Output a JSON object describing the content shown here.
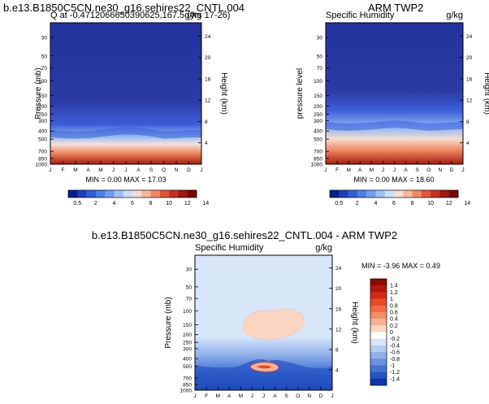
{
  "titles": {
    "top_left": "b.e13.B1850C5CN.ne30_g16.sehires22_CNTL.004",
    "top_right": "ARM TWP2",
    "bottom": "b.e13.B1850C5CN.ne30_g16.sehires22_CNTL.004 - ARM TWP2"
  },
  "chart_data": [
    {
      "type": "heatmap",
      "subtitle_left": "Q at -0.4712066650390625,167.5  (yrs 17-26)",
      "subtitle_right": "g/kg",
      "ylabel": "Pressure (mb)",
      "ylabel_right": "Height (km)",
      "months": [
        "J",
        "F",
        "M",
        "A",
        "M",
        "J",
        "J",
        "A",
        "S",
        "O",
        "N",
        "D",
        "J"
      ],
      "pressure_ticks": [
        "30",
        "50",
        "70",
        "100",
        "150",
        "200",
        "250",
        "300",
        "400",
        "500",
        "700",
        "850",
        "1000"
      ],
      "height_ticks": [
        "24",
        "20",
        "16",
        "12",
        "8",
        "4"
      ],
      "stats": "MIN =  0.00 MAX = 17.03",
      "min": 0.0,
      "max": 17.03,
      "colorbar_labels": [
        "0.5",
        "2",
        "4",
        "6",
        "8",
        "10",
        "12",
        "14"
      ],
      "colorbar_colors": [
        "#0a1f8f",
        "#1b3fbf",
        "#2f5ed6",
        "#4a7ee8",
        "#6f9ef2",
        "#9cc0f7",
        "#c8dcfb",
        "#f3dcd0",
        "#f6b89a",
        "#ef8a63",
        "#e2553b",
        "#c7301f",
        "#a01610",
        "#7a0705"
      ],
      "moisture_top_pressure_by_month": [
        390,
        400,
        405,
        400,
        385,
        370,
        360,
        365,
        380,
        405,
        400,
        390,
        390
      ]
    },
    {
      "type": "heatmap",
      "subtitle_left": "Specific Humidity",
      "subtitle_right": "g/kg",
      "ylabel": "pressure level",
      "ylabel_right": "Height (km)",
      "months": [
        "J",
        "F",
        "M",
        "A",
        "M",
        "J",
        "J",
        "A",
        "S",
        "O",
        "N",
        "D",
        "J"
      ],
      "pressure_ticks": [
        "30",
        "50",
        "70",
        "100",
        "150",
        "200",
        "250",
        "300",
        "400",
        "500",
        "700",
        "850",
        "1000"
      ],
      "height_ticks": [
        "24",
        "20",
        "16",
        "12",
        "8",
        "4"
      ],
      "stats": "MIN =  0.00 MAX = 18.60",
      "min": 0.0,
      "max": 18.6,
      "colorbar_labels": [
        "0.5",
        "2",
        "4",
        "6",
        "8",
        "10",
        "12",
        "14"
      ],
      "colorbar_colors": [
        "#0a1f8f",
        "#1b3fbf",
        "#2f5ed6",
        "#4a7ee8",
        "#6f9ef2",
        "#9cc0f7",
        "#c8dcfb",
        "#f3dcd0",
        "#f6b89a",
        "#ef8a63",
        "#e2553b",
        "#c7301f",
        "#a01610",
        "#7a0705"
      ],
      "moisture_top_pressure_by_month": [
        310,
        320,
        325,
        320,
        315,
        305,
        300,
        305,
        315,
        325,
        320,
        315,
        310
      ]
    },
    {
      "type": "heatmap",
      "subtitle_left": "Specific Humidity",
      "subtitle_right": "g/kg",
      "ylabel": "Pressure (mb)",
      "ylabel_right": "Height (km)",
      "months": [
        "J",
        "F",
        "M",
        "A",
        "M",
        "J",
        "J",
        "A",
        "S",
        "O",
        "N",
        "D",
        "J"
      ],
      "pressure_ticks": [
        "30",
        "50",
        "70",
        "100",
        "150",
        "200",
        "250",
        "300",
        "400",
        "500",
        "700",
        "850",
        "1000"
      ],
      "height_ticks": [
        "24",
        "20",
        "16",
        "12",
        "8",
        "4"
      ],
      "stats": "MIN = -3.96 MAX =  0.49",
      "min": -3.96,
      "max": 0.49,
      "colorbar_labels": [
        "1.4",
        "1.2",
        "1",
        "0.8",
        "0.6",
        "0.4",
        "0.2",
        "0",
        "-0.2",
        "-0.4",
        "-0.6",
        "-0.8",
        "-1",
        "-1.2",
        "-1.4"
      ],
      "colorbar_colors": [
        "#8c0a05",
        "#b3180e",
        "#d42a17",
        "#e84a2c",
        "#f06b47",
        "#f48e68",
        "#f7b293",
        "#fad5c2",
        "#ffffff",
        "#d9e6fa",
        "#b5ccf3",
        "#8fb0ea",
        "#6a92df",
        "#4673d3",
        "#2553c4",
        "#0f35a8"
      ]
    }
  ]
}
